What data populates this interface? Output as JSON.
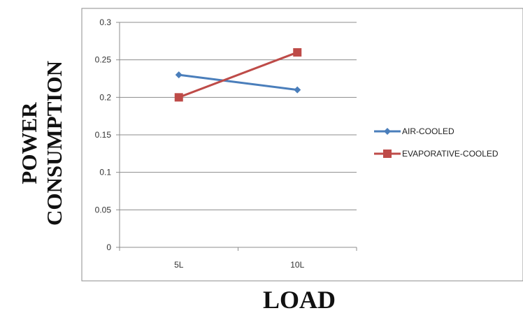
{
  "chart_data": {
    "type": "line",
    "categories": [
      "5L",
      "10L"
    ],
    "series": [
      {
        "name": "AIR-COOLED",
        "values": [
          0.23,
          0.21
        ],
        "color": "#4A7EBB",
        "marker": "diamond"
      },
      {
        "name": "EVAPORATIVE-COOLED",
        "values": [
          0.2,
          0.26
        ],
        "color": "#BE4B48",
        "marker": "square"
      }
    ],
    "title": "",
    "xlabel": "LOAD",
    "ylabel": [
      "POWER",
      "CONSUMPTION"
    ],
    "ylim": [
      0,
      0.3
    ],
    "yticks": [
      "0",
      "0.05",
      "0.1",
      "0.15",
      "0.2",
      "0.25",
      "0.3"
    ],
    "grid": "horizontal",
    "legend": "right"
  }
}
